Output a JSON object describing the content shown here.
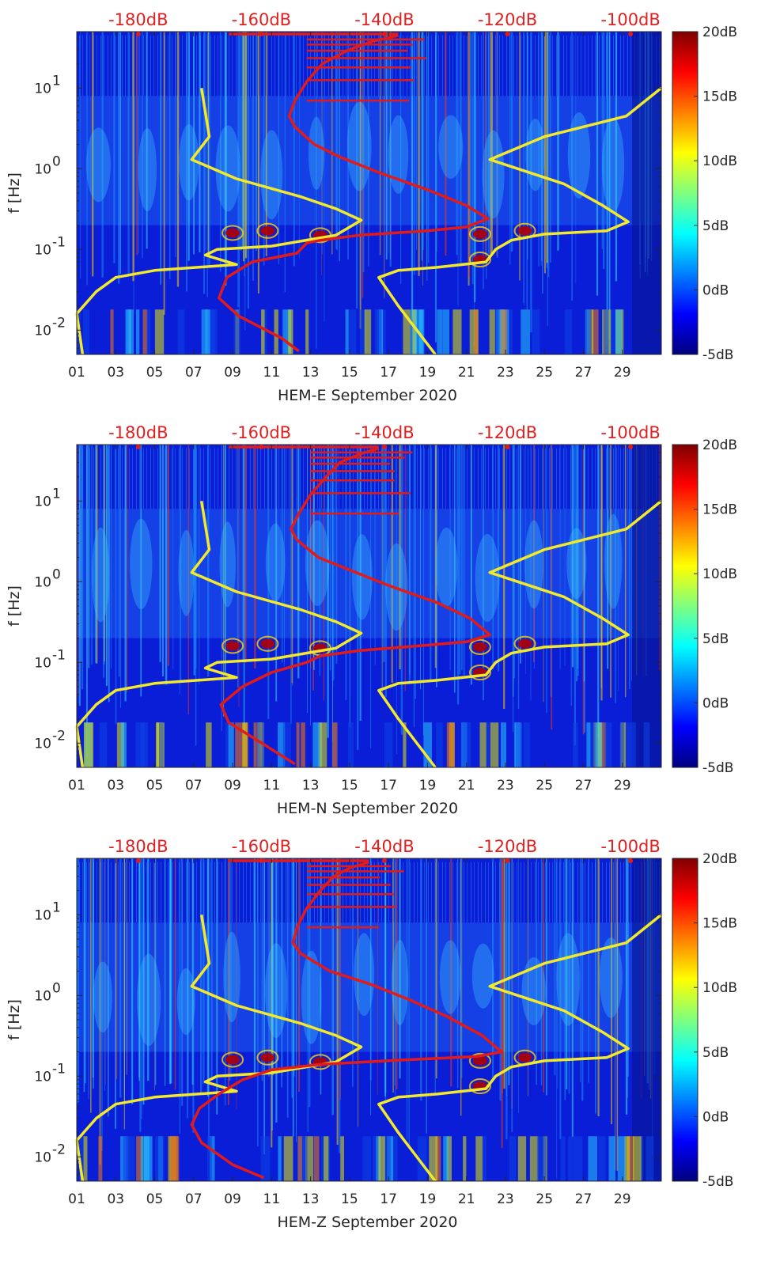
{
  "chart_data": [
    {
      "type": "heatmap",
      "title": "HEM-E September 2020",
      "xlabel": "HEM-E September 2020",
      "ylabel": "f [Hz]",
      "x_ticks": [
        "01",
        "03",
        "05",
        "07",
        "09",
        "11",
        "13",
        "15",
        "17",
        "19",
        "21",
        "23",
        "25",
        "27",
        "29"
      ],
      "y_ticks": [
        {
          "value": 0.01,
          "label": "10"
        },
        {
          "value": 0.1,
          "label": "10"
        },
        {
          "value": 1,
          "label": "10"
        },
        {
          "value": 10,
          "label": "10"
        }
      ],
      "y_tick_exponents": [
        "-2",
        "-1",
        "0",
        "1"
      ],
      "xlim": [
        1,
        31
      ],
      "ylim": [
        0.005,
        50
      ],
      "colorbar": {
        "ticks": [
          "20dB",
          "15dB",
          "10dB",
          "5dB",
          "0dB",
          "-5dB"
        ],
        "range": [
          -5,
          20
        ]
      },
      "top_axis_labels": [
        "-180dB",
        "-160dB",
        "-140dB",
        "-120dB",
        "-100dB"
      ],
      "top_axis_range": [
        -190,
        -95
      ],
      "series": [
        {
          "name": "yellow-noise-model",
          "color": "#f2e82c",
          "points": [
            [
              7.4,
              10
            ],
            [
              7.8,
              2.5
            ],
            [
              6.9,
              1.3
            ],
            [
              9.2,
              0.75
            ],
            [
              12.5,
              0.45
            ],
            [
              14.3,
              0.32
            ],
            [
              15.6,
              0.23
            ],
            [
              14.3,
              0.15
            ],
            [
              11.0,
              0.11
            ],
            [
              8.2,
              0.1
            ],
            [
              7.6,
              0.085
            ],
            [
              9.2,
              0.065
            ],
            [
              5.0,
              0.055
            ],
            [
              3.0,
              0.045
            ],
            [
              2.0,
              0.03
            ],
            [
              1.0,
              0.016
            ],
            [
              1.3,
              0.005
            ]
          ]
        },
        {
          "name": "yellow-noise-model-2",
          "color": "#f2e82c",
          "points": [
            [
              31.0,
              10
            ],
            [
              29.2,
              4.5
            ],
            [
              25.0,
              2.5
            ],
            [
              22.2,
              1.3
            ],
            [
              26.0,
              0.65
            ],
            [
              28.0,
              0.35
            ],
            [
              29.3,
              0.22
            ],
            [
              28.2,
              0.17
            ],
            [
              25.0,
              0.155
            ],
            [
              23.3,
              0.13
            ],
            [
              22.5,
              0.1
            ],
            [
              22.0,
              0.07
            ],
            [
              19.5,
              0.06
            ],
            [
              17.5,
              0.055
            ],
            [
              16.5,
              0.045
            ],
            [
              17.5,
              0.02
            ],
            [
              19.4,
              0.005
            ]
          ]
        },
        {
          "name": "red-noise-model",
          "color": "#e11a1a",
          "points": [
            [
              17.5,
              45
            ],
            [
              16.2,
              38
            ],
            [
              15.0,
              30
            ],
            [
              13.6,
              20
            ],
            [
              12.8,
              12
            ],
            [
              12.2,
              7.0
            ],
            [
              11.9,
              4.5
            ],
            [
              12.2,
              3.3
            ],
            [
              13.2,
              2.0
            ],
            [
              14.5,
              1.4
            ],
            [
              16.5,
              0.9
            ],
            [
              19.0,
              0.55
            ],
            [
              21.0,
              0.35
            ],
            [
              22.1,
              0.24
            ],
            [
              21.0,
              0.19
            ],
            [
              19.0,
              0.17
            ],
            [
              15.5,
              0.15
            ],
            [
              13.5,
              0.13
            ],
            [
              12.8,
              0.12
            ],
            [
              12.3,
              0.09
            ],
            [
              10.0,
              0.07
            ],
            [
              8.7,
              0.045
            ],
            [
              8.3,
              0.025
            ],
            [
              9.3,
              0.015
            ],
            [
              11.5,
              0.008
            ],
            [
              12.4,
              0.0055
            ]
          ]
        }
      ]
    },
    {
      "type": "heatmap",
      "title": "HEM-N September 2020",
      "xlabel": "HEM-N September 2020",
      "ylabel": "f [Hz]",
      "x_ticks": [
        "01",
        "03",
        "05",
        "07",
        "09",
        "11",
        "13",
        "15",
        "17",
        "19",
        "21",
        "23",
        "25",
        "27",
        "29"
      ],
      "y_ticks": [
        {
          "value": 0.01,
          "label": "10"
        },
        {
          "value": 0.1,
          "label": "10"
        },
        {
          "value": 1,
          "label": "10"
        },
        {
          "value": 10,
          "label": "10"
        }
      ],
      "y_tick_exponents": [
        "-2",
        "-1",
        "0",
        "1"
      ],
      "xlim": [
        1,
        31
      ],
      "ylim": [
        0.005,
        50
      ],
      "colorbar": {
        "ticks": [
          "20dB",
          "15dB",
          "10dB",
          "5dB",
          "0dB",
          "-5dB"
        ],
        "range": [
          -5,
          20
        ]
      },
      "top_axis_labels": [
        "-180dB",
        "-160dB",
        "-140dB",
        "-120dB",
        "-100dB"
      ],
      "top_axis_range": [
        -190,
        -95
      ],
      "series": [
        {
          "name": "yellow-noise-model",
          "color": "#f2e82c",
          "points": [
            [
              7.4,
              10
            ],
            [
              7.8,
              2.5
            ],
            [
              6.9,
              1.3
            ],
            [
              9.2,
              0.75
            ],
            [
              12.5,
              0.45
            ],
            [
              14.3,
              0.32
            ],
            [
              15.6,
              0.23
            ],
            [
              14.3,
              0.15
            ],
            [
              11.0,
              0.11
            ],
            [
              8.2,
              0.1
            ],
            [
              7.6,
              0.085
            ],
            [
              9.2,
              0.065
            ],
            [
              5.0,
              0.055
            ],
            [
              3.0,
              0.045
            ],
            [
              2.0,
              0.03
            ],
            [
              1.0,
              0.016
            ],
            [
              1.3,
              0.005
            ]
          ]
        },
        {
          "name": "yellow-noise-model-2",
          "color": "#f2e82c",
          "points": [
            [
              31.0,
              10
            ],
            [
              29.2,
              4.5
            ],
            [
              25.0,
              2.5
            ],
            [
              22.2,
              1.3
            ],
            [
              26.0,
              0.65
            ],
            [
              28.0,
              0.35
            ],
            [
              29.3,
              0.22
            ],
            [
              28.2,
              0.17
            ],
            [
              25.0,
              0.155
            ],
            [
              23.3,
              0.13
            ],
            [
              22.5,
              0.1
            ],
            [
              22.0,
              0.07
            ],
            [
              19.5,
              0.06
            ],
            [
              17.5,
              0.055
            ],
            [
              16.5,
              0.045
            ],
            [
              17.5,
              0.02
            ],
            [
              19.4,
              0.005
            ]
          ]
        },
        {
          "name": "red-noise-model",
          "color": "#e11a1a",
          "points": [
            [
              16.5,
              45
            ],
            [
              15.5,
              38
            ],
            [
              14.5,
              30
            ],
            [
              13.8,
              20
            ],
            [
              13.0,
              12
            ],
            [
              12.4,
              7.0
            ],
            [
              12.0,
              4.5
            ],
            [
              12.3,
              3.3
            ],
            [
              13.4,
              2.0
            ],
            [
              15.0,
              1.4
            ],
            [
              17.0,
              0.9
            ],
            [
              19.5,
              0.55
            ],
            [
              21.2,
              0.35
            ],
            [
              22.2,
              0.22
            ],
            [
              21.0,
              0.18
            ],
            [
              18.5,
              0.16
            ],
            [
              15.5,
              0.14
            ],
            [
              13.5,
              0.12
            ],
            [
              12.8,
              0.1
            ],
            [
              11.0,
              0.075
            ],
            [
              9.5,
              0.05
            ],
            [
              8.4,
              0.03
            ],
            [
              8.8,
              0.018
            ],
            [
              10.5,
              0.01
            ],
            [
              12.2,
              0.0055
            ]
          ]
        }
      ]
    },
    {
      "type": "heatmap",
      "title": "HEM-Z September 2020",
      "xlabel": "HEM-Z September 2020",
      "ylabel": "f [Hz]",
      "x_ticks": [
        "01",
        "03",
        "05",
        "07",
        "09",
        "11",
        "13",
        "15",
        "17",
        "19",
        "21",
        "23",
        "25",
        "27",
        "29"
      ],
      "y_ticks": [
        {
          "value": 0.01,
          "label": "10"
        },
        {
          "value": 0.1,
          "label": "10"
        },
        {
          "value": 1,
          "label": "10"
        },
        {
          "value": 10,
          "label": "10"
        }
      ],
      "y_tick_exponents": [
        "-2",
        "-1",
        "0",
        "1"
      ],
      "xlim": [
        1,
        31
      ],
      "ylim": [
        0.005,
        50
      ],
      "colorbar": {
        "ticks": [
          "20dB",
          "15dB",
          "10dB",
          "5dB",
          "0dB",
          "-5dB"
        ],
        "range": [
          -5,
          20
        ]
      },
      "top_axis_labels": [
        "-180dB",
        "-160dB",
        "-140dB",
        "-120dB",
        "-100dB"
      ],
      "top_axis_range": [
        -190,
        -95
      ],
      "series": [
        {
          "name": "yellow-noise-model",
          "color": "#f2e82c",
          "points": [
            [
              7.4,
              10
            ],
            [
              7.8,
              2.5
            ],
            [
              6.9,
              1.3
            ],
            [
              9.2,
              0.75
            ],
            [
              12.5,
              0.45
            ],
            [
              14.3,
              0.32
            ],
            [
              15.6,
              0.23
            ],
            [
              14.3,
              0.15
            ],
            [
              11.0,
              0.11
            ],
            [
              8.2,
              0.1
            ],
            [
              7.6,
              0.085
            ],
            [
              9.2,
              0.065
            ],
            [
              5.0,
              0.055
            ],
            [
              3.0,
              0.045
            ],
            [
              2.0,
              0.03
            ],
            [
              1.0,
              0.016
            ],
            [
              1.3,
              0.005
            ]
          ]
        },
        {
          "name": "yellow-noise-model-2",
          "color": "#f2e82c",
          "points": [
            [
              31.0,
              10
            ],
            [
              29.2,
              4.5
            ],
            [
              25.0,
              2.5
            ],
            [
              22.2,
              1.3
            ],
            [
              26.0,
              0.65
            ],
            [
              28.0,
              0.35
            ],
            [
              29.3,
              0.22
            ],
            [
              28.2,
              0.17
            ],
            [
              25.0,
              0.155
            ],
            [
              23.3,
              0.13
            ],
            [
              22.5,
              0.1
            ],
            [
              22.0,
              0.07
            ],
            [
              19.5,
              0.06
            ],
            [
              17.5,
              0.055
            ],
            [
              16.5,
              0.045
            ],
            [
              17.5,
              0.02
            ],
            [
              19.4,
              0.005
            ]
          ]
        },
        {
          "name": "red-noise-model",
          "color": "#e11a1a",
          "points": [
            [
              16.0,
              45
            ],
            [
              15.0,
              38
            ],
            [
              14.2,
              30
            ],
            [
              13.5,
              20
            ],
            [
              12.8,
              12
            ],
            [
              12.3,
              7.0
            ],
            [
              12.1,
              4.5
            ],
            [
              12.5,
              3.3
            ],
            [
              14.0,
              2.0
            ],
            [
              16.0,
              1.4
            ],
            [
              18.0,
              0.9
            ],
            [
              20.0,
              0.55
            ],
            [
              21.8,
              0.32
            ],
            [
              22.8,
              0.2
            ],
            [
              21.5,
              0.175
            ],
            [
              18.0,
              0.16
            ],
            [
              13.5,
              0.14
            ],
            [
              11.0,
              0.12
            ],
            [
              9.5,
              0.09
            ],
            [
              8.3,
              0.06
            ],
            [
              7.3,
              0.04
            ],
            [
              6.9,
              0.025
            ],
            [
              7.4,
              0.015
            ],
            [
              9.0,
              0.008
            ],
            [
              10.6,
              0.0055
            ]
          ]
        }
      ]
    }
  ]
}
